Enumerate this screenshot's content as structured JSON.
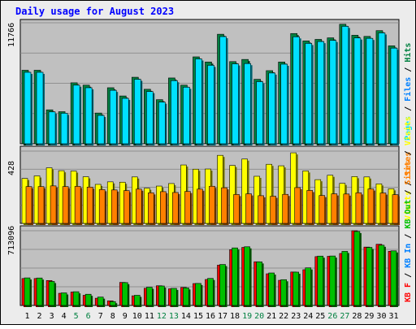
{
  "chart_data": {
    "type": "bar",
    "title": "Daily usage for August 2023",
    "days": [
      "1",
      "2",
      "3",
      "4",
      "5",
      "6",
      "7",
      "8",
      "9",
      "10",
      "11",
      "12",
      "13",
      "14",
      "15",
      "16",
      "17",
      "18",
      "19",
      "20",
      "21",
      "22",
      "23",
      "24",
      "25",
      "26",
      "27",
      "28",
      "29",
      "30",
      "31"
    ],
    "weekend_days": [
      "5",
      "6",
      "12",
      "13",
      "19",
      "20",
      "26",
      "27"
    ],
    "colors": {
      "title": "#0000ff",
      "pages": "#00e0ff",
      "hits": "#008040",
      "files": "#0080ff",
      "visits": "#ffff00",
      "sites": "#ff8000",
      "kb_in": "#00c000",
      "kb_out": "#ff0000",
      "weekend_label": "#008040",
      "weekday_label": "#000000",
      "plot_bg": "#c0c0c0",
      "outer_bg": "#ececec"
    },
    "panels": [
      {
        "name": "hits-files-pages",
        "max_label": "11766",
        "max_value": 11766,
        "legend": [
          {
            "text": "Pages",
            "color": "#00e0ff"
          },
          {
            "text": "/",
            "color": "#000000"
          },
          {
            "text": "Files",
            "color": "#0080ff"
          },
          {
            "text": "/",
            "color": "#000000"
          },
          {
            "text": "Hits",
            "color": "#008040"
          }
        ],
        "series": [
          {
            "name": "Hits",
            "color": "#008040",
            "values": [
              7150,
              7150,
              3300,
              3120,
              5930,
              5700,
              2990,
              5450,
              4650,
              6470,
              5300,
              4290,
              6400,
              5700,
              8450,
              7950,
              10650,
              7990,
              8200,
              6270,
              7110,
              7950,
              10720,
              10000,
              10150,
              10300,
              11620,
              10550,
              10440,
              11000,
              9520
            ]
          },
          {
            "name": "Pages",
            "color": "#00e0ff",
            "values": [
              6950,
              6950,
              3100,
              2970,
              5700,
              5450,
              2760,
              5200,
              4420,
              6270,
              5080,
              4050,
              6140,
              5500,
              8250,
              7630,
              10420,
              7770,
              7800,
              6040,
              6880,
              7740,
              10400,
              9760,
              9940,
              10050,
              11420,
              10290,
              10250,
              10780,
              9300
            ]
          }
        ]
      },
      {
        "name": "visits-sites",
        "max_label": "428",
        "max_value": 428,
        "legend": [
          {
            "text": "Visits",
            "color": "#ffff00"
          },
          {
            "text": "/",
            "color": "#000000"
          },
          {
            "text": "Sites",
            "color": "#ff8000"
          }
        ],
        "series": [
          {
            "name": "Visits",
            "color": "#ffff00",
            "values": [
              266,
              281,
              329,
              312,
              310,
              276,
              231,
              246,
              244,
              275,
              208,
              221,
              236,
              346,
              321,
              322,
              403,
              343,
              381,
              279,
              350,
              341,
              418,
              311,
              259,
              285,
              237,
              277,
              275,
              234,
              205
            ]
          },
          {
            "name": "Sites",
            "color": "#ff8000",
            "values": [
              218,
              218,
              222,
              218,
              219,
              215,
              200,
              198,
              194,
              203,
              181,
              188,
              183,
              189,
              203,
              220,
              211,
              171,
              175,
              164,
              161,
              172,
              212,
              195,
              165,
              175,
              174,
              181,
              204,
              180,
              170
            ]
          }
        ]
      },
      {
        "name": "kbin-kbout",
        "max_label": "713096",
        "max_value": 713096,
        "legend": [
          {
            "text": "KB F",
            "color": "#ff0000"
          },
          {
            "text": "/",
            "color": "#000000"
          },
          {
            "text": "KB In",
            "color": "#0080ff"
          },
          {
            "text": "/",
            "color": "#000000"
          },
          {
            "text": "KB Out",
            "color": "#00c000"
          },
          {
            "text": "/",
            "color": "#000000"
          },
          {
            "text": "Sites",
            "color": "#ff8000"
          },
          {
            "text": "/",
            "color": "#000000"
          },
          {
            "text": "Visits",
            "color": "#ffff00"
          }
        ],
        "series": [
          {
            "name": "KB F",
            "color": "#ff0000",
            "values": [
              257000,
              257000,
              238000,
              116000,
              128000,
              97000,
              69000,
              44000,
              220000,
              92000,
              164000,
              188000,
              159000,
              172000,
              209000,
              248000,
              385000,
              532000,
              554000,
              417000,
              302000,
              240000,
              319000,
              341000,
              466000,
              469000,
              496000,
              713000,
              557000,
              584000,
              517000
            ]
          },
          {
            "name": "KB In",
            "color": "#00c000",
            "values": [
              263000,
              262000,
              229000,
              120000,
              131000,
              107000,
              80000,
              37000,
              218000,
              97000,
              174000,
              186000,
              163000,
              168000,
              210000,
              258000,
              391000,
              549000,
              560000,
              416000,
              310000,
              246000,
              318000,
              359000,
              471000,
              472000,
              516000,
              706000,
              554000,
              575000,
              521000
            ]
          }
        ]
      }
    ],
    "legend_labels": {
      "hits": "Hits",
      "files": "Files",
      "pages": "Pages",
      "visits": "Visits",
      "sites": "Sites",
      "kb_in": "KB In",
      "kb_out": "KB Out",
      "kb_f": "KB F"
    }
  }
}
